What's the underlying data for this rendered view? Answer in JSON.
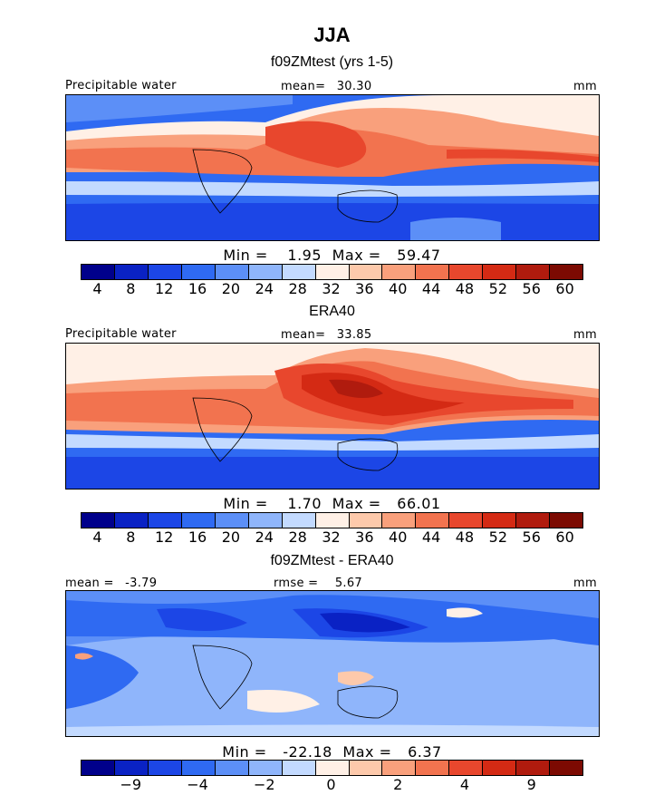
{
  "figure": {
    "title": "JJA"
  },
  "palette": [
    "#00008b",
    "#0a22c4",
    "#1c46e6",
    "#2f6af2",
    "#5c8ff7",
    "#8fb5fb",
    "#c3daff",
    "#fff0e6",
    "#fdc9ab",
    "#f9a07c",
    "#f2734f",
    "#e8472d",
    "#d42a14",
    "#b01b0e",
    "#7c0a02"
  ],
  "chart_data": [
    {
      "type": "heatmap",
      "title": "f09ZMtest (yrs 1-5)",
      "variable_label": "Precipitable water",
      "stat_label": "mean=",
      "stat_value": "30.30",
      "units": "mm",
      "min_label": "Min =",
      "min_value": "1.95",
      "max_label": "Max =",
      "max_value": "59.47",
      "colorbar_ticks": [
        "4",
        "8",
        "12",
        "16",
        "20",
        "24",
        "28",
        "32",
        "36",
        "40",
        "44",
        "48",
        "52",
        "56",
        "60"
      ],
      "mean": 30.3,
      "min": 1.95,
      "max": 59.47
    },
    {
      "type": "heatmap",
      "title": "ERA40",
      "variable_label": "Precipitable water",
      "stat_label": "mean=",
      "stat_value": "33.85",
      "units": "mm",
      "min_label": "Min =",
      "min_value": "1.70",
      "max_label": "Max =",
      "max_value": "66.01",
      "colorbar_ticks": [
        "4",
        "8",
        "12",
        "16",
        "20",
        "24",
        "28",
        "32",
        "36",
        "40",
        "44",
        "48",
        "52",
        "56",
        "60"
      ],
      "mean": 33.85,
      "min": 1.7,
      "max": 66.01
    },
    {
      "type": "heatmap",
      "title": "f09ZMtest - ERA40",
      "stat_label": "mean =",
      "stat_value": "-3.79",
      "rmse_label": "rmse =",
      "rmse_value": "5.67",
      "units": "mm",
      "min_label": "Min =",
      "min_value": "-22.18",
      "max_label": "Max =",
      "max_value": "6.37",
      "colorbar_ticks": [
        "−9",
        "−4",
        "−2",
        "0",
        "2",
        "4",
        "9"
      ],
      "mean": -3.79,
      "rmse": 5.67,
      "min": -22.18,
      "max": 6.37
    }
  ]
}
